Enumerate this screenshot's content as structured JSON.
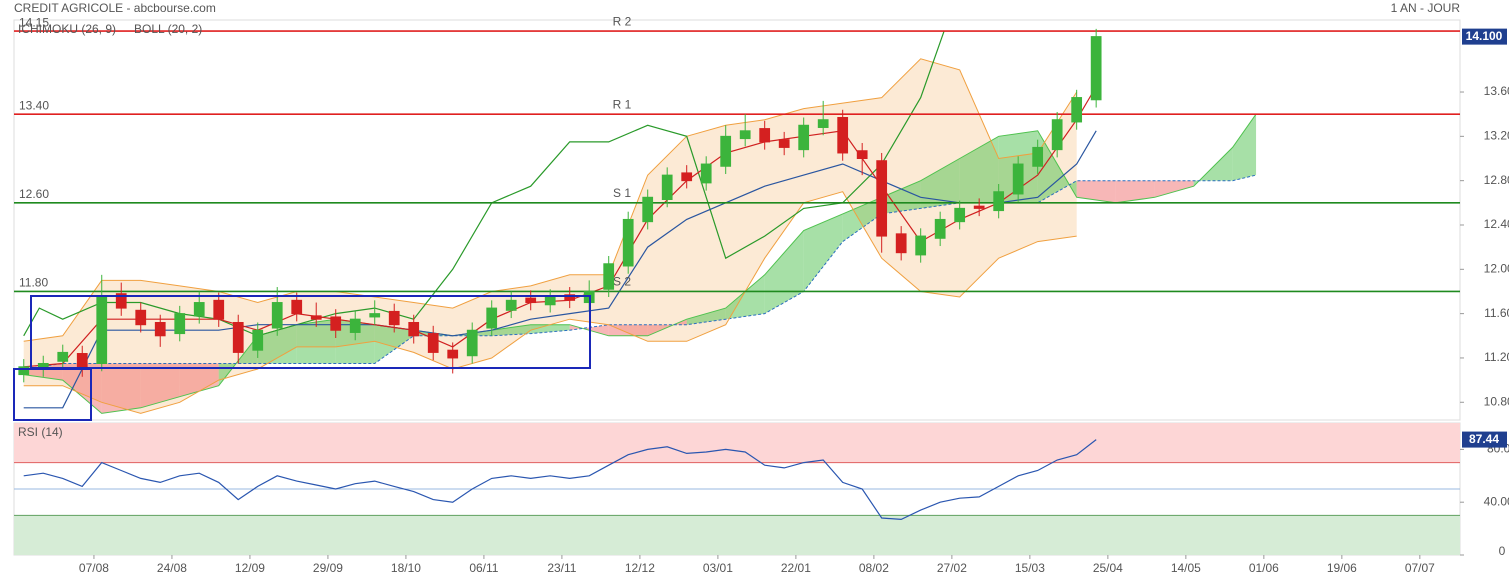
{
  "chart_data": [
    {
      "type": "candlestick",
      "title": "CREDIT AGRICOLE - abcbourse.com",
      "subtitle": "1 AN - JOUR",
      "up_color": "#3cb43c",
      "down_color": "#d42020",
      "x": [
        -18,
        -13,
        -8,
        -3,
        2,
        7,
        12,
        17,
        22,
        27,
        32,
        37,
        42,
        47,
        52,
        57,
        62,
        67,
        72,
        77,
        82,
        87,
        92,
        97,
        102,
        107,
        112,
        117,
        122,
        127,
        132,
        137,
        142,
        147,
        152,
        157,
        162,
        167,
        172,
        177,
        182,
        187,
        192,
        197,
        202,
        207,
        212,
        217,
        222,
        227,
        232,
        237,
        242,
        247,
        252,
        257
      ],
      "open": [
        11.05,
        11.1,
        11.17,
        11.24,
        11.15,
        11.78,
        11.63,
        11.52,
        11.42,
        11.58,
        11.72,
        11.52,
        11.27,
        11.47,
        11.72,
        11.58,
        11.57,
        11.43,
        11.57,
        11.62,
        11.52,
        11.42,
        11.27,
        11.22,
        11.47,
        11.63,
        11.74,
        11.68,
        11.77,
        11.7,
        11.82,
        12.03,
        12.43,
        12.63,
        12.87,
        12.78,
        12.93,
        13.18,
        13.27,
        13.17,
        13.08,
        13.28,
        13.37,
        13.07,
        12.98,
        12.32,
        12.13,
        12.28,
        12.43,
        12.57,
        12.53,
        12.68,
        12.93,
        13.08,
        13.33,
        13.53
      ],
      "high": [
        11.19,
        11.22,
        11.32,
        11.31,
        11.95,
        11.88,
        11.7,
        11.59,
        11.67,
        11.8,
        11.79,
        11.59,
        11.52,
        11.84,
        11.79,
        11.7,
        11.64,
        11.62,
        11.72,
        11.69,
        11.59,
        11.49,
        11.34,
        11.52,
        11.72,
        11.8,
        11.81,
        11.82,
        11.84,
        11.9,
        12.12,
        12.52,
        12.72,
        12.92,
        12.94,
        13.02,
        13.3,
        13.4,
        13.34,
        13.24,
        13.37,
        13.52,
        13.44,
        13.14,
        13.05,
        12.39,
        12.37,
        12.52,
        12.62,
        12.64,
        12.77,
        13.02,
        13.17,
        13.42,
        13.62,
        14.17
      ],
      "low": [
        10.98,
        11.03,
        11.1,
        11.03,
        11.08,
        11.58,
        11.43,
        11.3,
        11.35,
        11.51,
        11.48,
        11.15,
        11.2,
        11.4,
        11.53,
        11.48,
        11.38,
        11.36,
        11.5,
        11.43,
        11.33,
        11.18,
        11.06,
        11.15,
        11.4,
        11.56,
        11.63,
        11.61,
        11.65,
        11.63,
        11.75,
        11.96,
        12.36,
        12.56,
        12.73,
        12.71,
        12.86,
        13.11,
        13.08,
        13.03,
        13.01,
        13.21,
        12.98,
        12.85,
        12.15,
        12.08,
        12.06,
        12.21,
        12.36,
        12.48,
        12.46,
        12.61,
        12.86,
        13.01,
        13.26,
        13.46
      ],
      "close": [
        11.12,
        11.15,
        11.25,
        11.1,
        11.75,
        11.65,
        11.5,
        11.4,
        11.6,
        11.7,
        11.55,
        11.25,
        11.45,
        11.7,
        11.6,
        11.55,
        11.45,
        11.55,
        11.6,
        11.5,
        11.4,
        11.25,
        11.2,
        11.45,
        11.65,
        11.72,
        11.7,
        11.75,
        11.72,
        11.8,
        12.05,
        12.45,
        12.65,
        12.85,
        12.8,
        12.95,
        13.2,
        13.25,
        13.15,
        13.1,
        13.3,
        13.35,
        13.05,
        13.0,
        12.3,
        12.15,
        12.3,
        12.45,
        12.55,
        12.55,
        12.7,
        12.95,
        13.1,
        13.35,
        13.55,
        14.1
      ],
      "ichimoku": {
        "name": "ICHIMOKU (26, 9)",
        "color": "#2a6fbf",
        "line_x": [
          -18,
          -8,
          2,
          12,
          22,
          32,
          42,
          52,
          62,
          72,
          82,
          92,
          102,
          112,
          122,
          132,
          142,
          152,
          162,
          172,
          182,
          192,
          202,
          212,
          222,
          232,
          242,
          252,
          257
        ],
        "tenkan": [
          11.12,
          11.15,
          11.55,
          11.55,
          11.55,
          11.55,
          11.45,
          11.6,
          11.55,
          11.5,
          11.45,
          11.3,
          11.55,
          11.7,
          11.72,
          11.85,
          12.45,
          12.8,
          13.05,
          13.15,
          13.2,
          13.25,
          12.75,
          12.25,
          12.45,
          12.6,
          12.85,
          13.35,
          13.65
        ],
        "tenkan_color": "#d02020",
        "kijun": [
          10.75,
          10.75,
          11.45,
          11.45,
          11.45,
          11.45,
          11.5,
          11.5,
          11.5,
          11.5,
          11.45,
          11.4,
          11.45,
          11.55,
          11.6,
          11.65,
          12.2,
          12.45,
          12.6,
          12.75,
          12.85,
          12.95,
          12.8,
          12.65,
          12.6,
          12.6,
          12.65,
          12.95,
          13.25
        ],
        "kijun_color": "#2a56a0",
        "chikou_x": [
          -18,
          -14,
          -8,
          2,
          12,
          22,
          32,
          42,
          52,
          62,
          72,
          82,
          92,
          102,
          112,
          122,
          132,
          142,
          152,
          162,
          172,
          182,
          192,
          202,
          212,
          218
        ],
        "chikou": [
          11.4,
          11.65,
          11.55,
          11.7,
          11.7,
          11.6,
          11.55,
          11.4,
          11.5,
          11.6,
          11.65,
          11.55,
          12.0,
          12.6,
          12.75,
          13.15,
          13.15,
          13.3,
          13.2,
          12.1,
          12.3,
          12.55,
          12.6,
          12.95,
          13.55,
          14.15
        ],
        "chikou_color": "#2a9a2a",
        "cloud_x": [
          -18,
          -8,
          2,
          12,
          22,
          32,
          42,
          52,
          62,
          72,
          82,
          92,
          102,
          112,
          122,
          132,
          142,
          152,
          162,
          172,
          182,
          192,
          202,
          212,
          222,
          232,
          242,
          252,
          262,
          272,
          282,
          292,
          298
        ],
        "span_a": [
          11.05,
          11.0,
          10.7,
          10.75,
          10.85,
          10.95,
          11.4,
          11.5,
          11.55,
          11.5,
          11.45,
          11.4,
          11.45,
          11.5,
          11.5,
          11.4,
          11.4,
          11.55,
          11.65,
          11.95,
          12.35,
          12.5,
          12.65,
          12.8,
          13.0,
          13.2,
          13.25,
          12.65,
          12.6,
          12.65,
          12.75,
          13.1,
          13.4
        ],
        "span_b": [
          11.1,
          11.15,
          11.15,
          11.15,
          11.15,
          11.15,
          11.15,
          11.15,
          11.15,
          11.15,
          11.4,
          11.4,
          11.4,
          11.42,
          11.45,
          11.5,
          11.5,
          11.5,
          11.55,
          11.6,
          11.8,
          12.25,
          12.5,
          12.55,
          12.6,
          12.6,
          12.6,
          12.8,
          12.8,
          12.8,
          12.8,
          12.8,
          12.85
        ],
        "cloud_up_color": "#4fc24f",
        "cloud_down_color": "#f07070"
      },
      "bollinger": {
        "name": "BOLL (20, 2)",
        "color": "#f0a040",
        "x": [
          -18,
          -8,
          2,
          12,
          22,
          32,
          42,
          52,
          62,
          72,
          82,
          92,
          102,
          112,
          122,
          132,
          142,
          152,
          162,
          172,
          182,
          192,
          202,
          212,
          222,
          232,
          242,
          252
        ],
        "upper": [
          11.35,
          11.4,
          11.9,
          11.9,
          11.85,
          11.8,
          11.7,
          11.8,
          11.8,
          11.75,
          11.7,
          11.65,
          11.8,
          11.85,
          11.95,
          11.95,
          12.85,
          13.2,
          13.3,
          13.35,
          13.45,
          13.5,
          13.55,
          13.9,
          13.8,
          13.0,
          13.05,
          13.6
        ],
        "lower": [
          10.95,
          10.95,
          10.8,
          10.7,
          10.8,
          11.0,
          11.1,
          11.3,
          11.3,
          11.35,
          11.25,
          11.1,
          11.2,
          11.45,
          11.55,
          11.5,
          11.35,
          11.35,
          11.5,
          12.1,
          12.6,
          12.7,
          12.1,
          11.8,
          11.75,
          12.1,
          12.25,
          12.3
        ]
      },
      "levels": [
        {
          "name": "R 2",
          "value": 14.15,
          "label": "14.15",
          "color": "#e02020"
        },
        {
          "name": "R 1",
          "value": 13.4,
          "label": "13.40",
          "color": "#e02020"
        },
        {
          "name": "S 1",
          "value": 12.6,
          "label": "12.60",
          "color": "#1f8a1f"
        },
        {
          "name": "S 2",
          "value": 11.8,
          "label": "11.80",
          "color": "#1f8a1f"
        }
      ],
      "price_marker": {
        "value": 14.1,
        "label": "14.100"
      },
      "xlim": [
        -20.5,
        350.3
      ],
      "ylim": [
        10.64,
        14.25
      ],
      "yticks": [
        {
          "value": 10.8,
          "label": "10.800"
        },
        {
          "value": 11.2,
          "label": "11.200"
        },
        {
          "value": 11.6,
          "label": "11.600"
        },
        {
          "value": 12.0,
          "label": "12.000"
        },
        {
          "value": 12.4,
          "label": "12.400"
        },
        {
          "value": 12.8,
          "label": "12.800"
        },
        {
          "value": 13.2,
          "label": "13.200"
        },
        {
          "value": 13.6,
          "label": "13.600"
        }
      ],
      "xticks": [
        {
          "value": 0,
          "label": "07/08"
        },
        {
          "value": 20,
          "label": "24/08"
        },
        {
          "value": 40,
          "label": "12/09"
        },
        {
          "value": 60,
          "label": "29/09"
        },
        {
          "value": 80,
          "label": "18/10"
        },
        {
          "value": 100,
          "label": "06/11"
        },
        {
          "value": 120,
          "label": "23/11"
        },
        {
          "value": 140,
          "label": "12/12"
        },
        {
          "value": 160,
          "label": "03/01"
        },
        {
          "value": 180,
          "label": "22/01"
        },
        {
          "value": 200,
          "label": "08/02"
        },
        {
          "value": 220,
          "label": "27/02"
        },
        {
          "value": 240,
          "label": "15/03"
        },
        {
          "value": 260,
          "label": "25/04"
        },
        {
          "value": 280,
          "label": "14/05"
        },
        {
          "value": 300,
          "label": "01/06"
        },
        {
          "value": 320,
          "label": "19/06"
        },
        {
          "value": 340,
          "label": "07/07"
        }
      ]
    },
    {
      "type": "line",
      "title": "RSI (14)",
      "color": "#2a56b0",
      "x": [
        -18,
        -13,
        -8,
        -3,
        2,
        7,
        12,
        17,
        22,
        27,
        32,
        37,
        42,
        47,
        52,
        57,
        62,
        67,
        72,
        77,
        82,
        87,
        92,
        97,
        102,
        107,
        112,
        117,
        122,
        127,
        132,
        137,
        142,
        147,
        152,
        157,
        162,
        167,
        172,
        177,
        182,
        187,
        192,
        197,
        202,
        207,
        212,
        217,
        222,
        227,
        232,
        237,
        242,
        247,
        252,
        257
      ],
      "values": [
        60,
        62,
        58,
        52,
        70,
        64,
        58,
        55,
        60,
        62,
        55,
        42,
        52,
        60,
        56,
        53,
        50,
        54,
        56,
        52,
        48,
        42,
        40,
        50,
        58,
        60,
        58,
        60,
        58,
        60,
        68,
        76,
        80,
        82,
        77,
        78,
        80,
        78,
        68,
        66,
        70,
        72,
        55,
        50,
        28,
        27,
        34,
        40,
        43,
        44,
        52,
        60,
        64,
        72,
        76,
        87.44
      ],
      "levels": [
        30,
        50,
        70
      ],
      "xlim": [
        -20.5,
        350.3
      ],
      "ylim": [
        0,
        100
      ],
      "yticks": [
        0,
        {
          "value": 40,
          "label": "40.000"
        },
        {
          "value": 80,
          "label": "80.00"
        }
      ]
    }
  ]
}
